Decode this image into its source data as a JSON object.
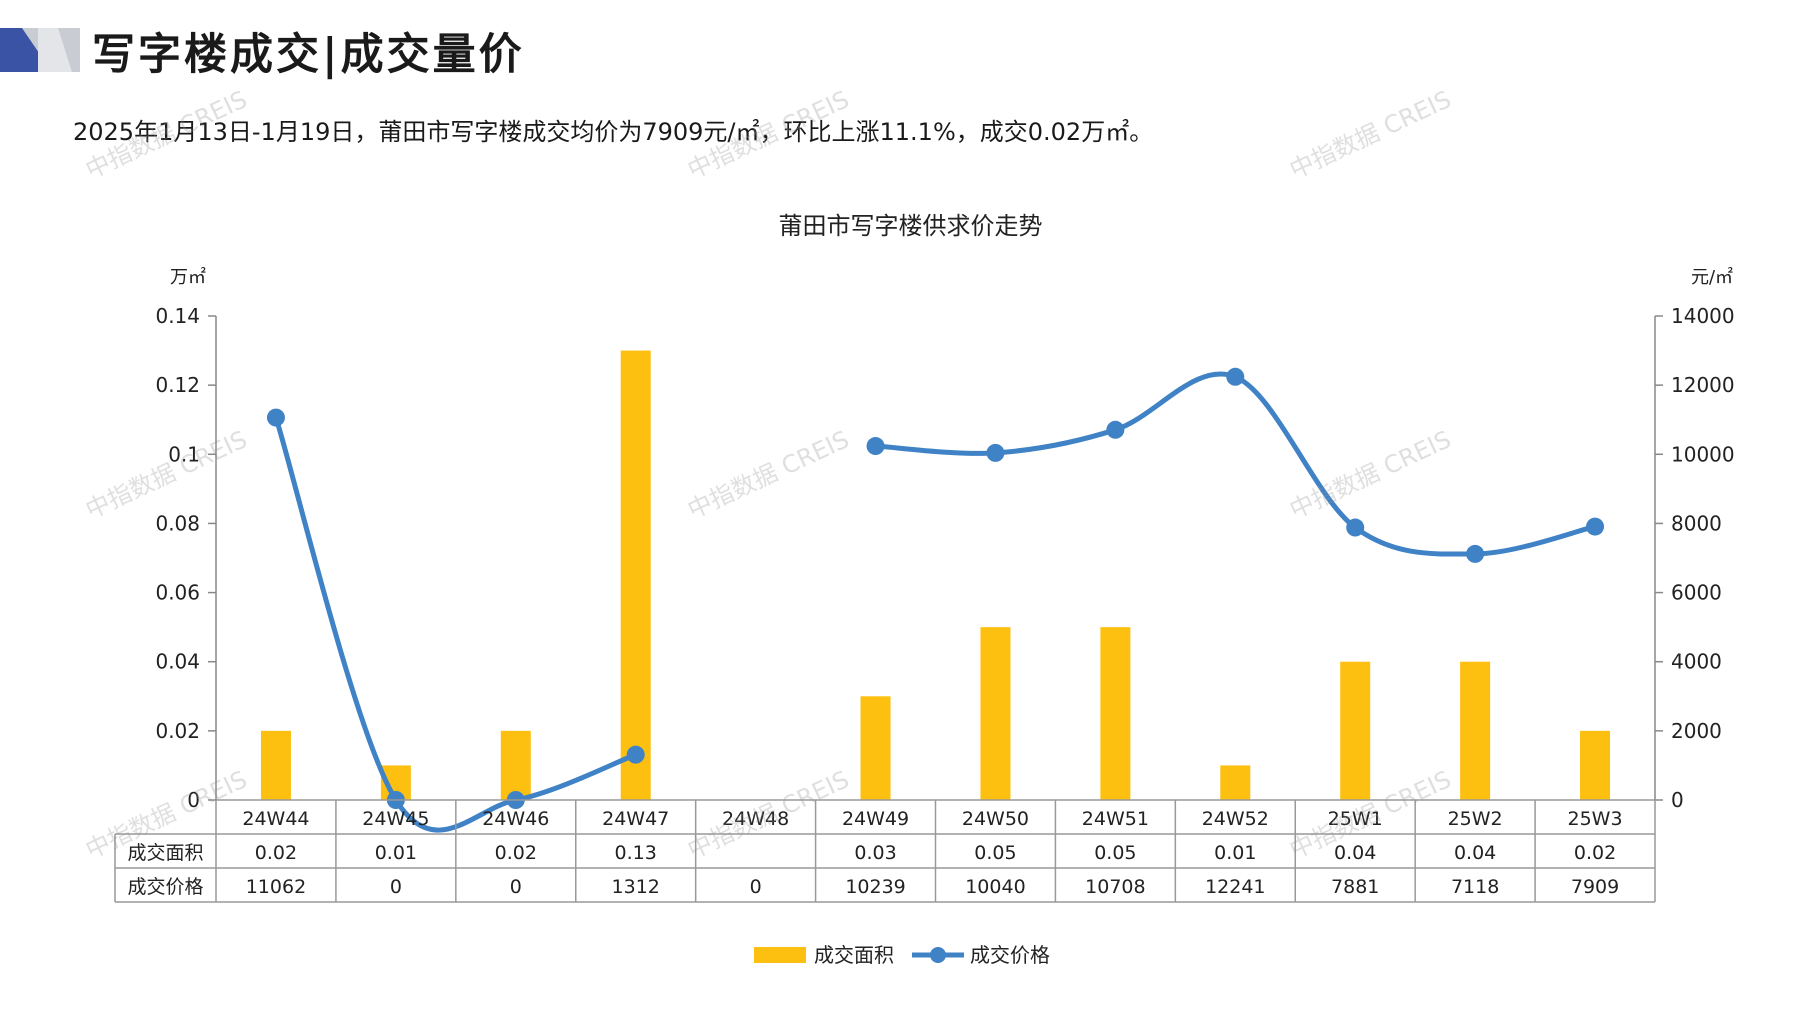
{
  "header": {
    "title": "写字楼成交|成交量价",
    "summary": "2025年1月13日-1月19日，莆田市写字楼成交均价为7909元/㎡，环比上涨11.1%，成交0.02万㎡。"
  },
  "colors": {
    "bar": "#FDC010",
    "line": "#3F82C6",
    "axis": "#888888",
    "logo_dark": "#3A53A4",
    "logo_light": "#C9CCD3"
  },
  "chart_data": {
    "type": "bar",
    "title": "莆田市写字楼供求价走势",
    "left_unit": "万㎡",
    "right_unit": "元/㎡",
    "categories": [
      "24W44",
      "24W45",
      "24W46",
      "24W47",
      "24W48",
      "24W49",
      "24W50",
      "24W51",
      "24W52",
      "25W1",
      "25W2",
      "25W3"
    ],
    "series": [
      {
        "name": "成交面积",
        "type": "bar",
        "axis": "left",
        "values": [
          0.02,
          0.01,
          0.02,
          0.13,
          null,
          0.03,
          0.05,
          0.05,
          0.01,
          0.04,
          0.04,
          0.02
        ],
        "labels": [
          "0.02",
          "0.01",
          "0.02",
          "0.13",
          "",
          "0.03",
          "0.05",
          "0.05",
          "0.01",
          "0.04",
          "0.04",
          "0.02"
        ]
      },
      {
        "name": "成交价格",
        "type": "line",
        "axis": "right",
        "values": [
          11062,
          0,
          0,
          1312,
          0,
          10239,
          10040,
          10708,
          12241,
          7881,
          7118,
          7909
        ],
        "labels": [
          "11062",
          "0",
          "0",
          "1312",
          "0",
          "10239",
          "10040",
          "10708",
          "12241",
          "7881",
          "7118",
          "7909"
        ]
      }
    ],
    "left_axis": {
      "min": 0,
      "max": 0.14,
      "ticks": [
        "0",
        "0.02",
        "0.04",
        "0.06",
        "0.08",
        "0.1",
        "0.12",
        "0.14"
      ]
    },
    "right_axis": {
      "min": 0,
      "max": 14000,
      "ticks": [
        "0",
        "2000",
        "4000",
        "6000",
        "8000",
        "10000",
        "12000",
        "14000"
      ]
    },
    "legend_position": "bottom-center"
  },
  "watermark": "中指数据 CREIS"
}
